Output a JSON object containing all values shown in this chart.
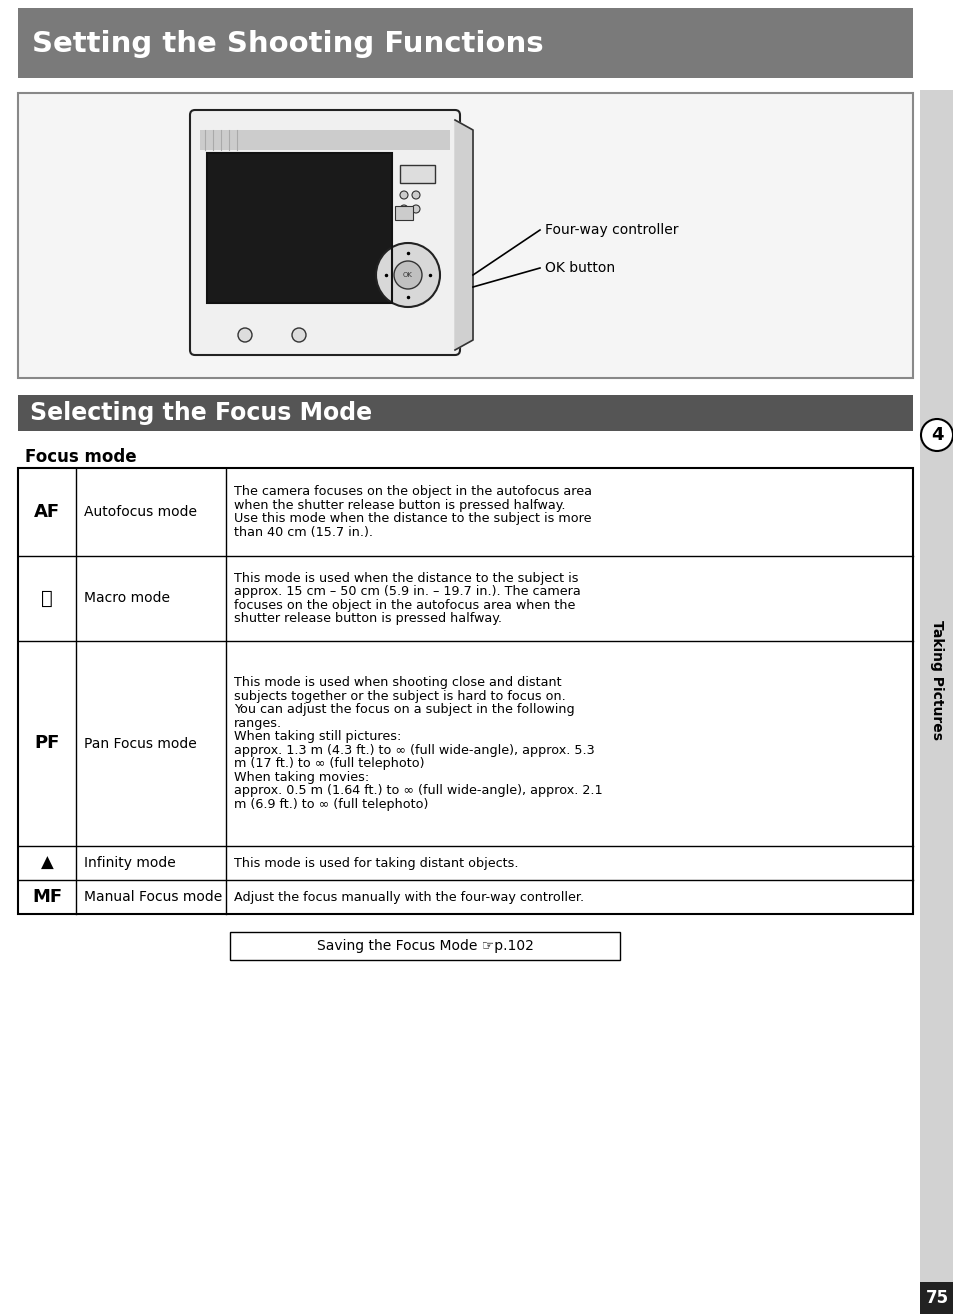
{
  "page_bg": "#ffffff",
  "header_bg": "#7a7a7a",
  "header_text": "Setting the Shooting Functions",
  "header_text_color": "#ffffff",
  "section2_bg": "#555555",
  "section2_text": "Selecting the Focus Mode",
  "section2_text_color": "#ffffff",
  "focus_mode_title": "Focus mode",
  "sidebar_text": "Taking Pictures",
  "sidebar_number": "4",
  "sidebar_bg": "#d2d2d2",
  "table_border_color": "#000000",
  "rows": [
    {
      "symbol": "AF",
      "symbol_bold": true,
      "mode": "Autofocus mode",
      "description": "The camera focuses on the object in the autofocus area\nwhen the shutter release button is pressed halfway.\nUse this mode when the distance to the subject is more\nthan 40 cm (15.7 in.)."
    },
    {
      "symbol": "✿",
      "symbol_bold": false,
      "mode": "Macro mode",
      "description": "This mode is used when the distance to the subject is\napprox. 15 cm – 50 cm (5.9 in. – 19.7 in.). The camera\nfocuses on the object in the autofocus area when the\nshutter release button is pressed halfway."
    },
    {
      "symbol": "PF",
      "symbol_bold": true,
      "mode": "Pan Focus mode",
      "description": "This mode is used when shooting close and distant\nsubjects together or the subject is hard to focus on.\nYou can adjust the focus on a subject in the following\nranges.\nWhen taking still pictures:\napprox. 1.3 m (4.3 ft.) to ∞ (full wide-angle), approx. 5.3\nm (17 ft.) to ∞ (full telephoto)\nWhen taking movies:\napprox. 0.5 m (1.64 ft.) to ∞ (full wide-angle), approx. 2.1\nm (6.9 ft.) to ∞ (full telephoto)"
    },
    {
      "symbol": "▲",
      "symbol_bold": false,
      "mode": "Infinity mode",
      "description": "This mode is used for taking distant objects."
    },
    {
      "symbol": "MF",
      "symbol_bold": true,
      "mode": "Manual Focus mode",
      "description": "Adjust the focus manually with the four-way controller."
    }
  ],
  "footer_text": "Saving the Focus Mode ☞p.102",
  "page_number": "75",
  "camera_label1": "Four-way controller",
  "camera_label2": "OK button"
}
